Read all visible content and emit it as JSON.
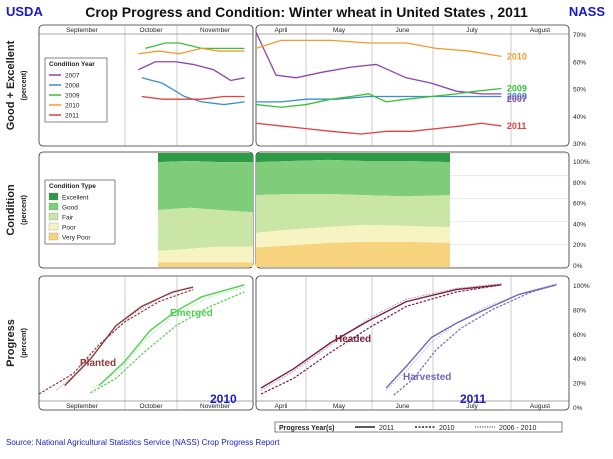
{
  "header": {
    "left": "USDA",
    "title": "Crop Progress and Condition: Winter wheat in United States , 2011",
    "right": "NASS"
  },
  "source": "Source: National Agricultural Statistics Service (NASS) Crop Progress Report",
  "colors": {
    "2007": "#8e44ad",
    "2008": "#3a8fc6",
    "2009": "#3bbf3b",
    "2010": "#f39a2e",
    "2011": "#e04040",
    "Excellent": "#2e9a46",
    "Good": "#7fcc7a",
    "Fair": "#c9e6a6",
    "Poor": "#f7f3c2",
    "Very Poor": "#f6d37c",
    "planted": "#8c3a3a",
    "emerged": "#4fcf4f",
    "headed": "#7a1e3a",
    "harvested": "#6a6ab8",
    "accent": "#1a1ac8"
  },
  "months": {
    "fall": [
      "September",
      "October",
      "November"
    ],
    "spring": [
      "April",
      "May",
      "June",
      "July",
      "August"
    ]
  },
  "chart_data": [
    {
      "type": "line",
      "ylabel": "Good + Excellent",
      "yunit": "(percent)",
      "ylim": [
        30,
        70
      ],
      "yticks": [
        "30%",
        "40%",
        "50%",
        "60%",
        "70%"
      ],
      "legend_title": "Condition Year",
      "legend": [
        "2007",
        "2008",
        "2009",
        "2010",
        "2011"
      ],
      "series": [
        {
          "name": "2007",
          "fall": [
            [
              0.58,
              57
            ],
            [
              0.68,
              60
            ],
            [
              0.8,
              60
            ],
            [
              0.9,
              59
            ],
            [
              1.02,
              57
            ],
            [
              1.12,
              53
            ],
            [
              1.2,
              54
            ]
          ],
          "spring": [
            [
              0.0,
              71
            ],
            [
              0.08,
              55
            ],
            [
              0.16,
              54
            ],
            [
              0.26,
              56
            ],
            [
              0.38,
              58
            ],
            [
              0.48,
              59
            ],
            [
              0.6,
              54
            ],
            [
              0.7,
              52
            ],
            [
              0.8,
              49
            ],
            [
              0.9,
              48
            ],
            [
              0.98,
              48
            ]
          ]
        },
        {
          "name": "2008",
          "fall": [
            [
              0.6,
              54
            ],
            [
              0.72,
              52
            ],
            [
              0.85,
              47
            ],
            [
              0.95,
              45
            ],
            [
              1.08,
              44
            ],
            [
              1.2,
              45
            ]
          ],
          "spring": [
            [
              0.0,
              45
            ],
            [
              0.1,
              45
            ],
            [
              0.2,
              46
            ],
            [
              0.32,
              46
            ],
            [
              0.45,
              47
            ],
            [
              0.55,
              47
            ],
            [
              0.62,
              47
            ],
            [
              0.75,
              47
            ],
            [
              0.88,
              47
            ],
            [
              0.98,
              47
            ]
          ]
        },
        {
          "name": "2009",
          "fall": [
            [
              0.62,
              65
            ],
            [
              0.74,
              67
            ],
            [
              0.82,
              67
            ],
            [
              0.95,
              65
            ],
            [
              1.1,
              65
            ],
            [
              1.2,
              65
            ]
          ],
          "spring": [
            [
              0.0,
              44
            ],
            [
              0.1,
              43
            ],
            [
              0.2,
              44
            ],
            [
              0.3,
              46
            ],
            [
              0.38,
              47
            ],
            [
              0.45,
              48
            ],
            [
              0.52,
              45
            ],
            [
              0.6,
              46
            ],
            [
              0.7,
              47
            ],
            [
              0.8,
              48
            ],
            [
              0.88,
              49
            ],
            [
              0.98,
              50
            ]
          ]
        },
        {
          "name": "2010",
          "fall": [
            [
              0.58,
              63
            ],
            [
              0.7,
              64
            ],
            [
              0.82,
              63
            ],
            [
              0.95,
              65
            ],
            [
              1.05,
              64
            ],
            [
              1.2,
              64
            ]
          ],
          "spring": [
            [
              0.0,
              65
            ],
            [
              0.1,
              68
            ],
            [
              0.2,
              68
            ],
            [
              0.3,
              68
            ],
            [
              0.45,
              67
            ],
            [
              0.6,
              67
            ],
            [
              0.72,
              65
            ],
            [
              0.85,
              64
            ],
            [
              0.98,
              62
            ]
          ]
        },
        {
          "name": "2011",
          "fall": [
            [
              0.6,
              47
            ],
            [
              0.72,
              46
            ],
            [
              0.82,
              46
            ],
            [
              0.95,
              46
            ],
            [
              1.08,
              47
            ],
            [
              1.2,
              47
            ]
          ],
          "spring": [
            [
              0.0,
              37
            ],
            [
              0.1,
              36
            ],
            [
              0.2,
              35
            ],
            [
              0.3,
              34
            ],
            [
              0.42,
              33
            ],
            [
              0.52,
              34
            ],
            [
              0.62,
              34
            ],
            [
              0.72,
              35
            ],
            [
              0.82,
              36
            ],
            [
              0.9,
              37
            ],
            [
              0.98,
              36
            ]
          ]
        }
      ],
      "end_labels": [
        {
          "text": "2010",
          "y": 62,
          "color": "#f39a2e"
        },
        {
          "text": "2009",
          "y": 50,
          "color": "#3bbf3b"
        },
        {
          "text": "2008",
          "y": 47,
          "color": "#3a8fc6"
        },
        {
          "text": "2007",
          "y": 46,
          "color": "#8e44ad"
        },
        {
          "text": "2011",
          "y": 36,
          "color": "#e04040"
        }
      ]
    },
    {
      "type": "area",
      "ylabel": "Condition",
      "yunit": "(percent)",
      "ylim": [
        0,
        100
      ],
      "yticks": [
        "0%",
        "20%",
        "40%",
        "60%",
        "80%",
        "100%"
      ],
      "legend_title": "Condition Type",
      "legend": [
        "Excellent",
        "Good",
        "Fair",
        "Poor",
        "Very Poor"
      ],
      "fall_cumulative": {
        "Very Poor": [
          4,
          4,
          4,
          4
        ],
        "Poor": [
          14,
          16,
          18,
          18
        ],
        "Fall": [
          50,
          52,
          50,
          48
        ],
        "Good": [
          92,
          93,
          92,
          92
        ],
        "Excellent": [
          100,
          100,
          100,
          100
        ]
      },
      "spring_cumulative": {
        "Very Poor": [
          17,
          19,
          21,
          22,
          22,
          21
        ],
        "Poor": [
          30,
          33,
          35,
          37,
          36,
          35
        ],
        "Fair": [
          63,
          64,
          64,
          63,
          62,
          63
        ],
        "Good": [
          92,
          93,
          94,
          93,
          93,
          92
        ],
        "Excellent": [
          100,
          100,
          100,
          100,
          100,
          100
        ]
      }
    },
    {
      "type": "line",
      "ylabel": "Progress",
      "yunit": "(percent)",
      "ylim": [
        0,
        100
      ],
      "yticks": [
        "0%",
        "20%",
        "40%",
        "60%",
        "80%",
        "100%"
      ],
      "labels": {
        "planted": "Planted",
        "emerged": "Emerged",
        "headed": "Headed",
        "harvested": "Harvested",
        "year_fall": "2010",
        "year_spring": "2011"
      },
      "legend_title": "Progress Year(s)",
      "legend": [
        "2011",
        "2010",
        "2006 - 2010"
      ],
      "series": [
        {
          "name": "Planted 2010",
          "fall": [
            [
              0.15,
              12
            ],
            [
              0.3,
              34
            ],
            [
              0.45,
              62
            ],
            [
              0.6,
              78
            ],
            [
              0.78,
              90
            ],
            [
              0.9,
              94
            ]
          ]
        },
        {
          "name": "Planted avg",
          "fall": [
            [
              0.1,
              8
            ],
            [
              0.25,
              26
            ],
            [
              0.4,
              52
            ],
            [
              0.55,
              72
            ],
            [
              0.72,
              86
            ],
            [
              0.88,
              94
            ]
          ]
        },
        {
          "name": "Planted 2010d",
          "fall": [
            [
              0.0,
              5
            ],
            [
              0.2,
              22
            ],
            [
              0.35,
              46
            ],
            [
              0.5,
              65
            ],
            [
              0.7,
              82
            ],
            [
              0.9,
              92
            ]
          ]
        },
        {
          "name": "Emerged 2010",
          "fall": [
            [
              0.35,
              12
            ],
            [
              0.5,
              32
            ],
            [
              0.65,
              58
            ],
            [
              0.8,
              74
            ],
            [
              0.95,
              86
            ],
            [
              1.2,
              96
            ]
          ]
        },
        {
          "name": "Emerged avg",
          "fall": [
            [
              0.32,
              10
            ],
            [
              0.48,
              26
            ],
            [
              0.62,
              50
            ],
            [
              0.8,
              72
            ],
            [
              1.0,
              86
            ],
            [
              1.2,
              94
            ]
          ]
        },
        {
          "name": "Emerged 2010d",
          "fall": [
            [
              0.3,
              6
            ],
            [
              0.45,
              18
            ],
            [
              0.6,
              38
            ],
            [
              0.8,
              62
            ],
            [
              1.0,
              78
            ],
            [
              1.2,
              90
            ]
          ]
        },
        {
          "name": "Headed 2011",
          "spring": [
            [
              0.02,
              10
            ],
            [
              0.15,
              26
            ],
            [
              0.3,
              48
            ],
            [
              0.45,
              66
            ],
            [
              0.6,
              82
            ],
            [
              0.8,
              92
            ],
            [
              0.98,
              96
            ]
          ]
        },
        {
          "name": "Headed 2010",
          "spring": [
            [
              0.02,
              5
            ],
            [
              0.15,
              18
            ],
            [
              0.3,
              40
            ],
            [
              0.45,
              60
            ],
            [
              0.6,
              78
            ],
            [
              0.8,
              90
            ],
            [
              0.98,
              96
            ]
          ]
        },
        {
          "name": "Headed avg",
          "spring": [
            [
              0.02,
              8
            ],
            [
              0.15,
              24
            ],
            [
              0.3,
              46
            ],
            [
              0.45,
              68
            ],
            [
              0.6,
              84
            ],
            [
              0.8,
              93
            ],
            [
              0.98,
              97
            ]
          ]
        },
        {
          "name": "Harvested 2011",
          "spring": [
            [
              0.52,
              10
            ],
            [
              0.6,
              28
            ],
            [
              0.7,
              52
            ],
            [
              0.8,
              64
            ],
            [
              0.9,
              74
            ],
            [
              1.05,
              88
            ],
            [
              1.2,
              96
            ]
          ]
        },
        {
          "name": "Harvested 2010",
          "spring": [
            [
              0.55,
              4
            ],
            [
              0.63,
              18
            ],
            [
              0.72,
              42
            ],
            [
              0.82,
              60
            ],
            [
              0.95,
              76
            ],
            [
              1.1,
              90
            ],
            [
              1.2,
              96
            ]
          ]
        },
        {
          "name": "Harvested avg",
          "spring": [
            [
              0.52,
              8
            ],
            [
              0.6,
              24
            ],
            [
              0.7,
              48
            ],
            [
              0.8,
              64
            ],
            [
              0.92,
              78
            ],
            [
              1.08,
              90
            ],
            [
              1.2,
              97
            ]
          ]
        }
      ]
    }
  ]
}
